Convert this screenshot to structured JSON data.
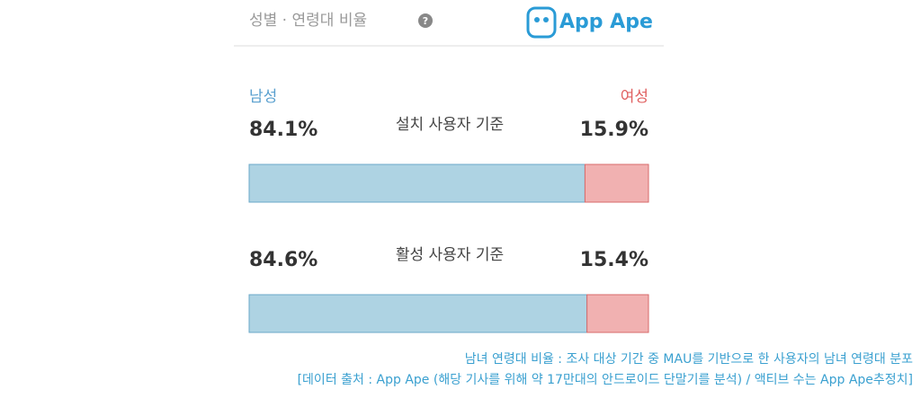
{
  "header": {
    "title": "성별 · 연령대 비율",
    "logo": "App Ape"
  },
  "chart_data": {
    "type": "bar",
    "orientation": "horizontal",
    "stacked": true,
    "categories": [
      "설치 사용자 기준",
      "활성 사용자 기준"
    ],
    "series": [
      {
        "name": "남성",
        "color": "#aed3e3",
        "values": [
          84.1,
          84.6
        ],
        "value_labels": [
          "84.1%",
          "84.6%"
        ]
      },
      {
        "name": "여성",
        "color": "#f1b1b1",
        "values": [
          15.9,
          15.4
        ],
        "value_labels": [
          "15.9%",
          "15.4%"
        ]
      }
    ]
  },
  "footnote": [
    "남녀 연령대 비율 : 조사 대상 기간 중 MAU를 기반으로 한 사용자의 남녀 연령대 분포",
    "[데이터 출처 : App Ape (해당 기사를 위해 약 17만대의 안드로이드 단말기를 분석) / 액티브 수는 App Ape추정치]"
  ]
}
